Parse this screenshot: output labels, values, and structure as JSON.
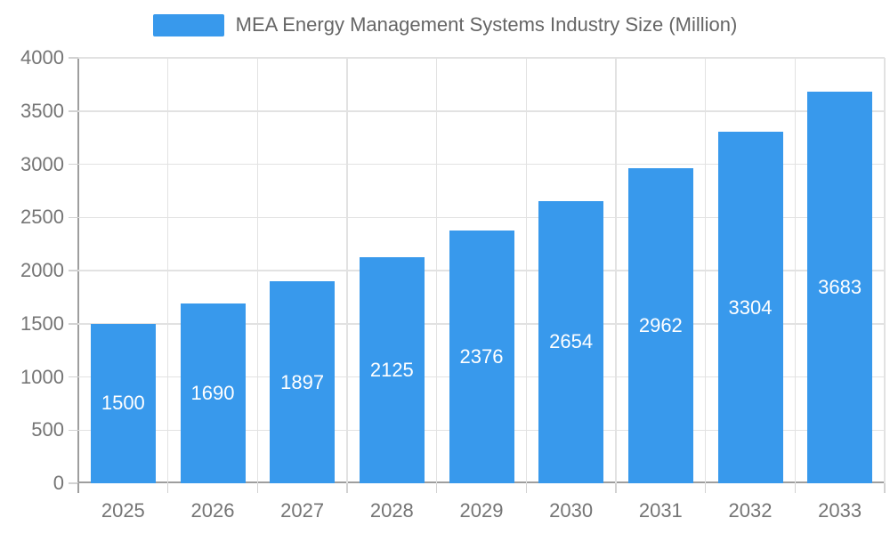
{
  "legend": {
    "label": "MEA Energy Management Systems Industry Size (Million)"
  },
  "chart_data": {
    "type": "bar",
    "title": "",
    "xlabel": "",
    "ylabel": "",
    "series_name": "MEA Energy Management Systems Industry Size (Million)",
    "categories": [
      "2025",
      "2026",
      "2027",
      "2028",
      "2029",
      "2030",
      "2031",
      "2032",
      "2033"
    ],
    "values": [
      1500,
      1690,
      1897,
      2125,
      2376,
      2654,
      2962,
      3304,
      3683
    ],
    "value_labels": [
      "1500",
      "1690",
      "1897",
      "2125",
      "2376",
      "2654",
      "2962",
      "3304",
      "3683"
    ],
    "ylim": [
      0,
      4000
    ],
    "yticks": [
      0,
      500,
      1000,
      1500,
      2000,
      2500,
      3000,
      3500,
      4000
    ],
    "grid": true,
    "legend_position": "top",
    "colors": {
      "bar": "#3899ec",
      "grid": "#e2e2e2",
      "axis_line": "#9e9e9e",
      "tick": "#d2d2d2",
      "axis_text": "#757575",
      "legend_text": "#666666",
      "value_label": "#ffffff"
    }
  }
}
